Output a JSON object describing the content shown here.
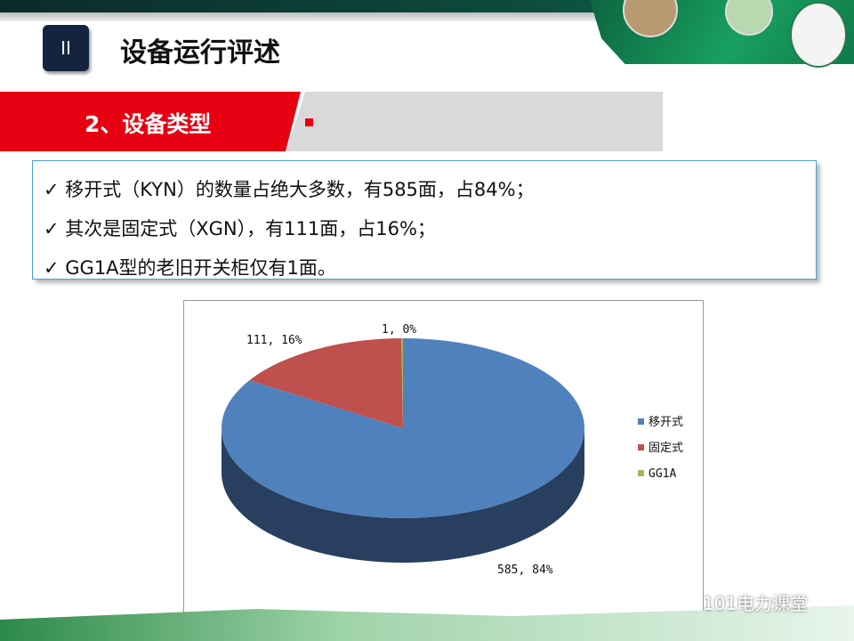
{
  "header": {
    "section_badge": "II",
    "title": "设备运行评述",
    "logo_text": "101电力课堂"
  },
  "subheader": {
    "title": "2、设备类型"
  },
  "bullets": [
    "✓ 移开式（KYN）的数量占绝大多数，有585面，占84%；",
    "✓ 其次是固定式（XGN），有111面，占16%；",
    "✓ GG1A型的老旧开关柜仅有1面。"
  ],
  "watermark": "101电力课堂",
  "chart_data": {
    "type": "pie",
    "style": "3d",
    "categories": [
      "移开式",
      "固定式",
      "GG1A"
    ],
    "values": [
      585,
      111,
      1
    ],
    "percents": [
      "84%",
      "16%",
      "0%"
    ],
    "data_labels": [
      "585, 84%",
      "111, 16%",
      "1, 0%"
    ],
    "colors": [
      "#4f81bd",
      "#c0504d",
      "#9bbb59"
    ],
    "legend": "right"
  }
}
